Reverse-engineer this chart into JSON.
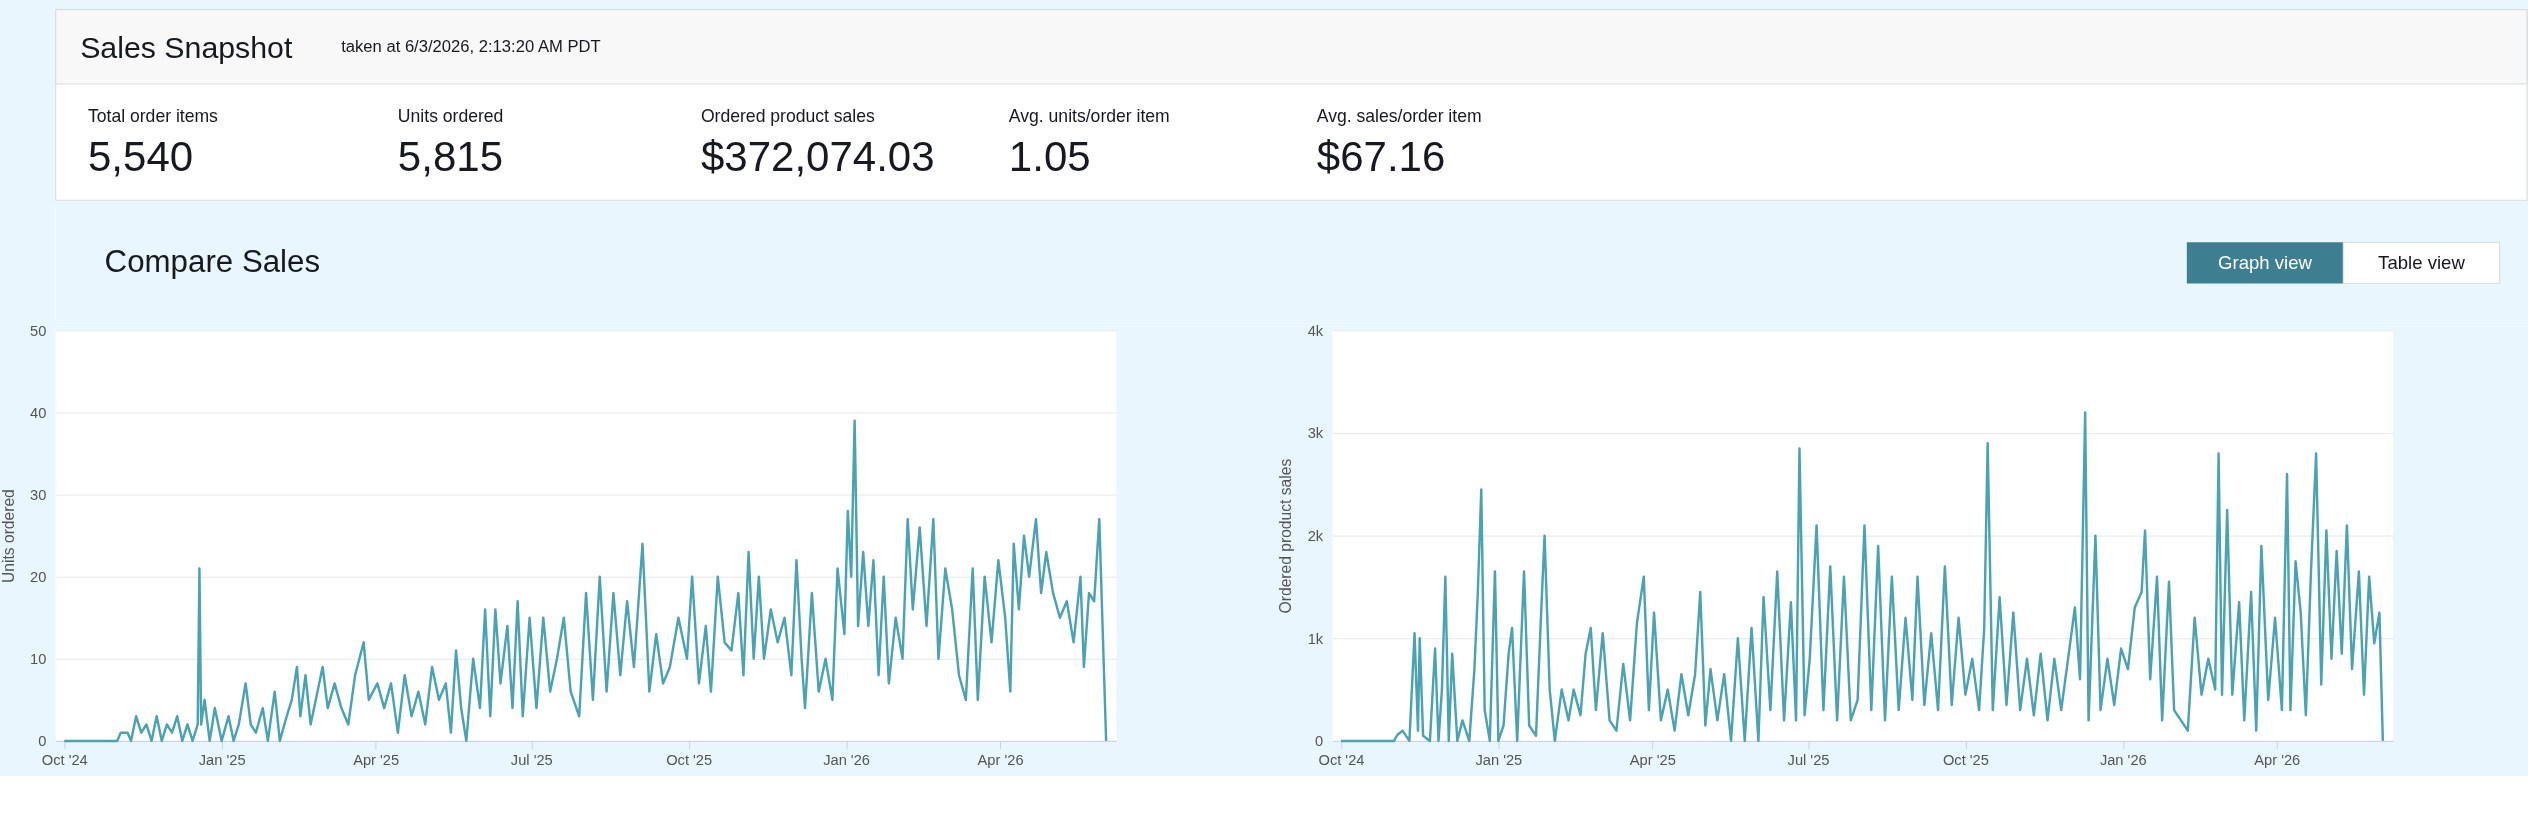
{
  "chart_data": [
    {
      "type": "other",
      "title": "Sales Snapshot",
      "subtitle": "taken at 6/3/2026, 2:13:20 AM PDT",
      "annotations": [
        "Total order items",
        "5,540",
        "Units ordered",
        "5,815",
        "Ordered product sales",
        "$372,074.03",
        "Avg. units/order item",
        "1.05",
        "Avg. sales/order item",
        "$67.16"
      ]
    },
    {
      "type": "other",
      "title": "Compare Sales",
      "annotations": [
        "Graph view",
        "Table view"
      ]
    },
    {
      "type": "line",
      "ylabel": "Units ordered",
      "color": "#4aa3b4",
      "grid": "y",
      "xlim": [
        "2024-09-26",
        "2026-06-08"
      ],
      "ylim": [
        0,
        50
      ],
      "yticks": [
        0,
        10,
        20,
        30,
        40,
        50
      ],
      "xticks": [
        {
          "value": "2024-10-01",
          "label": "Oct '24"
        },
        {
          "value": "2025-01-01",
          "label": "Jan '25"
        },
        {
          "value": "2025-04-01",
          "label": "Apr '25"
        },
        {
          "value": "2025-07-01",
          "label": "Jul '25"
        },
        {
          "value": "2025-10-01",
          "label": "Oct '25"
        },
        {
          "value": "2026-01-01",
          "label": "Jan '26"
        },
        {
          "value": "2026-04-01",
          "label": "Apr '26"
        }
      ],
      "x": [
        "2024-10-01",
        "2024-11-01",
        "2024-11-03",
        "2024-11-07",
        "2024-11-09",
        "2024-11-12",
        "2024-11-15",
        "2024-11-18",
        "2024-11-21",
        "2024-11-24",
        "2024-11-27",
        "2024-11-30",
        "2024-12-03",
        "2024-12-06",
        "2024-12-09",
        "2024-12-12",
        "2024-12-15",
        "2024-12-18",
        "2024-12-19",
        "2024-12-20",
        "2024-12-22",
        "2024-12-25",
        "2024-12-28",
        "2025-01-01",
        "2025-01-05",
        "2025-01-08",
        "2025-01-11",
        "2025-01-15",
        "2025-01-18",
        "2025-01-21",
        "2025-01-25",
        "2025-01-28",
        "2025-02-01",
        "2025-02-04",
        "2025-02-08",
        "2025-02-11",
        "2025-02-14",
        "2025-02-16",
        "2025-02-19",
        "2025-02-22",
        "2025-02-26",
        "2025-03-01",
        "2025-03-04",
        "2025-03-08",
        "2025-03-12",
        "2025-03-16",
        "2025-03-20",
        "2025-03-25",
        "2025-03-28",
        "2025-04-02",
        "2025-04-06",
        "2025-04-10",
        "2025-04-14",
        "2025-04-18",
        "2025-04-22",
        "2025-04-26",
        "2025-04-30",
        "2025-05-04",
        "2025-05-08",
        "2025-05-12",
        "2025-05-15",
        "2025-05-18",
        "2025-05-21",
        "2025-05-24",
        "2025-05-28",
        "2025-06-01",
        "2025-06-04",
        "2025-06-07",
        "2025-06-10",
        "2025-06-13",
        "2025-06-17",
        "2025-06-20",
        "2025-06-23",
        "2025-06-26",
        "2025-06-30",
        "2025-07-04",
        "2025-07-08",
        "2025-07-12",
        "2025-07-16",
        "2025-07-20",
        "2025-07-24",
        "2025-07-29",
        "2025-08-02",
        "2025-08-06",
        "2025-08-10",
        "2025-08-14",
        "2025-08-18",
        "2025-08-22",
        "2025-08-26",
        "2025-08-30",
        "2025-09-04",
        "2025-09-08",
        "2025-09-12",
        "2025-09-16",
        "2025-09-20",
        "2025-09-25",
        "2025-09-30",
        "2025-10-03",
        "2025-10-07",
        "2025-10-11",
        "2025-10-14",
        "2025-10-18",
        "2025-10-22",
        "2025-10-26",
        "2025-10-30",
        "2025-11-02",
        "2025-11-05",
        "2025-11-08",
        "2025-11-11",
        "2025-11-14",
        "2025-11-18",
        "2025-11-22",
        "2025-11-26",
        "2025-11-30",
        "2025-12-03",
        "2025-12-06",
        "2025-12-08",
        "2025-12-12",
        "2025-12-16",
        "2025-12-20",
        "2025-12-24",
        "2025-12-27",
        "2025-12-31",
        "2026-01-02",
        "2026-01-04",
        "2026-01-06",
        "2026-01-08",
        "2026-01-11",
        "2026-01-14",
        "2026-01-17",
        "2026-01-20",
        "2026-01-23",
        "2026-01-26",
        "2026-01-30",
        "2026-02-03",
        "2026-02-06",
        "2026-02-09",
        "2026-02-13",
        "2026-02-17",
        "2026-02-21",
        "2026-02-24",
        "2026-02-28",
        "2026-03-04",
        "2026-03-08",
        "2026-03-12",
        "2026-03-16",
        "2026-03-19",
        "2026-03-23",
        "2026-03-27",
        "2026-03-31",
        "2026-04-04",
        "2026-04-07",
        "2026-04-09",
        "2026-04-12",
        "2026-04-15",
        "2026-04-18",
        "2026-04-22",
        "2026-04-25",
        "2026-04-28",
        "2026-05-02",
        "2026-05-06",
        "2026-05-10",
        "2026-05-14",
        "2026-05-18",
        "2026-05-20",
        "2026-05-23",
        "2026-05-26",
        "2026-05-29",
        "2026-06-02"
      ],
      "values": [
        0,
        0,
        1,
        1,
        0,
        3,
        1,
        2,
        0,
        3,
        0,
        2,
        1,
        3,
        0,
        2,
        0,
        2,
        21,
        2,
        5,
        0,
        4,
        0,
        3,
        0,
        2,
        7,
        2,
        1,
        4,
        0,
        6,
        0,
        3,
        5,
        9,
        3,
        8,
        2,
        6,
        9,
        4,
        7,
        4,
        2,
        8,
        12,
        5,
        7,
        4,
        7,
        1,
        8,
        3,
        6,
        2,
        9,
        5,
        7,
        1,
        11,
        4,
        0,
        10,
        4,
        16,
        3,
        16,
        7,
        14,
        4,
        17,
        3,
        15,
        4,
        15,
        6,
        10,
        15,
        6,
        3,
        18,
        5,
        20,
        6,
        18,
        8,
        17,
        9,
        24,
        6,
        13,
        7,
        9,
        15,
        10,
        20,
        7,
        14,
        6,
        20,
        12,
        11,
        18,
        8,
        23,
        10,
        20,
        10,
        16,
        12,
        15,
        8,
        22,
        10,
        4,
        18,
        6,
        10,
        5,
        21,
        13,
        28,
        20,
        39,
        14,
        23,
        14,
        22,
        8,
        20,
        7,
        15,
        10,
        27,
        16,
        26,
        14,
        27,
        10,
        21,
        16,
        8,
        5,
        21,
        5,
        20,
        12,
        22,
        15,
        6,
        24,
        16,
        25,
        20,
        27,
        18,
        23,
        18,
        15,
        17,
        12,
        20,
        9,
        18,
        17,
        27,
        0
      ]
    },
    {
      "type": "line",
      "ylabel": "Ordered product sales",
      "color": "#4aa3b4",
      "grid": "y",
      "xlim": [
        "2024-09-26",
        "2026-06-08"
      ],
      "ylim": [
        0,
        4000
      ],
      "yticks": [
        0,
        {
          "value": 1000,
          "label": "1k"
        },
        {
          "value": 2000,
          "label": "2k"
        },
        {
          "value": 3000,
          "label": "3k"
        },
        {
          "value": 4000,
          "label": "4k"
        }
      ],
      "xticks": [
        {
          "value": "2024-10-01",
          "label": "Oct '24"
        },
        {
          "value": "2025-01-01",
          "label": "Jan '25"
        },
        {
          "value": "2025-04-01",
          "label": "Apr '25"
        },
        {
          "value": "2025-07-01",
          "label": "Jul '25"
        },
        {
          "value": "2025-10-01",
          "label": "Oct '25"
        },
        {
          "value": "2026-01-01",
          "label": "Jan '26"
        },
        {
          "value": "2026-04-01",
          "label": "Apr '26"
        }
      ],
      "x": [
        "2024-10-01",
        "2024-11-01",
        "2024-11-03",
        "2024-11-06",
        "2024-11-10",
        "2024-11-13",
        "2024-11-15",
        "2024-11-16",
        "2024-11-18",
        "2024-11-22",
        "2024-11-25",
        "2024-11-27",
        "2024-11-29",
        "2024-12-01",
        "2024-12-03",
        "2024-12-05",
        "2024-12-08",
        "2024-12-11",
        "2024-12-15",
        "2024-12-18",
        "2024-12-20",
        "2024-12-22",
        "2024-12-24",
        "2024-12-27",
        "2024-12-30",
        "2025-01-01",
        "2025-01-04",
        "2025-01-07",
        "2025-01-09",
        "2025-01-12",
        "2025-01-16",
        "2025-01-19",
        "2025-01-23",
        "2025-01-26",
        "2025-01-28",
        "2025-01-31",
        "2025-02-03",
        "2025-02-07",
        "2025-02-11",
        "2025-02-14",
        "2025-02-18",
        "2025-02-21",
        "2025-02-24",
        "2025-02-27",
        "2025-03-03",
        "2025-03-07",
        "2025-03-11",
        "2025-03-15",
        "2025-03-19",
        "2025-03-23",
        "2025-03-27",
        "2025-03-30",
        "2025-04-02",
        "2025-04-06",
        "2025-04-10",
        "2025-04-14",
        "2025-04-18",
        "2025-04-22",
        "2025-04-26",
        "2025-04-29",
        "2025-05-02",
        "2025-05-05",
        "2025-05-09",
        "2025-05-13",
        "2025-05-17",
        "2025-05-21",
        "2025-05-25",
        "2025-05-29",
        "2025-06-02",
        "2025-06-05",
        "2025-06-09",
        "2025-06-13",
        "2025-06-17",
        "2025-06-21",
        "2025-06-24",
        "2025-06-26",
        "2025-06-29",
        "2025-07-02",
        "2025-07-06",
        "2025-07-10",
        "2025-07-14",
        "2025-07-18",
        "2025-07-22",
        "2025-07-26",
        "2025-07-30",
        "2025-08-03",
        "2025-08-07",
        "2025-08-11",
        "2025-08-15",
        "2025-08-19",
        "2025-08-23",
        "2025-08-27",
        "2025-08-31",
        "2025-09-03",
        "2025-09-07",
        "2025-09-11",
        "2025-09-15",
        "2025-09-19",
        "2025-09-23",
        "2025-09-27",
        "2025-10-01",
        "2025-10-05",
        "2025-10-09",
        "2025-10-12",
        "2025-10-14",
        "2025-10-17",
        "2025-10-21",
        "2025-10-25",
        "2025-10-29",
        "2025-11-02",
        "2025-11-06",
        "2025-11-10",
        "2025-11-14",
        "2025-11-18",
        "2025-11-22",
        "2025-11-26",
        "2025-11-30",
        "2025-12-04",
        "2025-12-07",
        "2025-12-10",
        "2025-12-12",
        "2025-12-16",
        "2025-12-19",
        "2025-12-23",
        "2025-12-27",
        "2025-12-31",
        "2026-01-04",
        "2026-01-08",
        "2026-01-12",
        "2026-01-14",
        "2026-01-17",
        "2026-01-21",
        "2026-01-24",
        "2026-01-28",
        "2026-01-31",
        "2026-02-04",
        "2026-02-08",
        "2026-02-12",
        "2026-02-16",
        "2026-02-20",
        "2026-02-24",
        "2026-02-26",
        "2026-02-28",
        "2026-03-03",
        "2026-03-06",
        "2026-03-10",
        "2026-03-13",
        "2026-03-17",
        "2026-03-20",
        "2026-03-23",
        "2026-03-27",
        "2026-03-31",
        "2026-04-04",
        "2026-04-07",
        "2026-04-09",
        "2026-04-12",
        "2026-04-15",
        "2026-04-18",
        "2026-04-21",
        "2026-04-24",
        "2026-04-27",
        "2026-04-30",
        "2026-05-03",
        "2026-05-06",
        "2026-05-09",
        "2026-05-12",
        "2026-05-15",
        "2026-05-19",
        "2026-05-22",
        "2026-05-25",
        "2026-05-28",
        "2026-05-31",
        "2026-06-02"
      ],
      "values": [
        0,
        0,
        60,
        100,
        0,
        1050,
        100,
        1000,
        50,
        0,
        900,
        0,
        500,
        1600,
        0,
        850,
        0,
        200,
        0,
        700,
        1450,
        2450,
        300,
        0,
        1650,
        0,
        150,
        850,
        1100,
        0,
        1650,
        150,
        50,
        1250,
        2000,
        500,
        0,
        500,
        200,
        500,
        250,
        850,
        1100,
        300,
        1050,
        200,
        100,
        750,
        200,
        1150,
        1600,
        300,
        1250,
        200,
        500,
        100,
        650,
        250,
        650,
        1450,
        150,
        700,
        200,
        650,
        0,
        1000,
        0,
        1100,
        0,
        1400,
        300,
        1650,
        200,
        1350,
        200,
        2850,
        250,
        800,
        2100,
        300,
        1700,
        200,
        1600,
        200,
        400,
        2100,
        300,
        1900,
        200,
        1600,
        300,
        1200,
        400,
        1600,
        350,
        1050,
        300,
        1700,
        350,
        1200,
        450,
        800,
        300,
        1100,
        2900,
        300,
        1400,
        350,
        1250,
        300,
        800,
        250,
        850,
        200,
        800,
        300,
        800,
        1300,
        600,
        3200,
        200,
        2000,
        300,
        800,
        350,
        900,
        700,
        1300,
        1450,
        2050,
        600,
        1600,
        200,
        1550,
        300,
        200,
        100,
        1200,
        450,
        800,
        500,
        2800,
        450,
        2250,
        450,
        1350,
        200,
        1450,
        100,
        1900,
        400,
        1200,
        300,
        2600,
        300,
        1750,
        1250,
        250,
        1650,
        2800,
        550,
        2050,
        800,
        1850,
        850,
        2100,
        700,
        1650,
        450,
        1600,
        950,
        1250,
        0
      ]
    }
  ]
}
